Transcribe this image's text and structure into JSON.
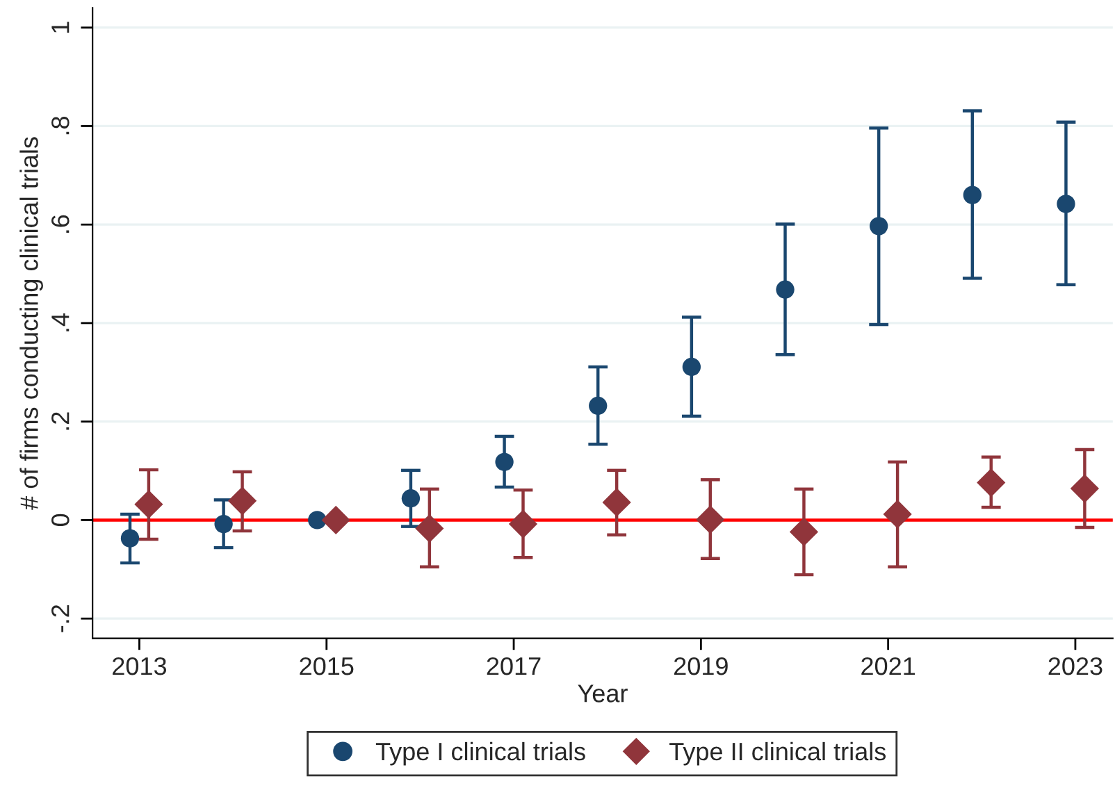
{
  "chart_data": {
    "type": "scatter",
    "xlabel": "Year",
    "ylabel": "# of firms conducting clinical trials",
    "xlim": [
      2012.5,
      2023.4
    ],
    "xticks": [
      2013,
      2015,
      2017,
      2019,
      2021,
      2023
    ],
    "ylim": [
      -0.24,
      1.04
    ],
    "yticks": [
      {
        "value": -0.2,
        "label": "-.2"
      },
      {
        "value": 0,
        "label": "0"
      },
      {
        "value": 0.2,
        "label": ".2"
      },
      {
        "value": 0.4,
        "label": ".4"
      },
      {
        "value": 0.6,
        "label": ".6"
      },
      {
        "value": 0.8,
        "label": ".8"
      },
      {
        "value": 1,
        "label": "1"
      }
    ],
    "grid": "y",
    "legend": "bottom",
    "ref_lines": [
      {
        "axis": "y",
        "value": 0,
        "color": "#ff0000"
      }
    ],
    "series": [
      {
        "name": "Type I clinical trials",
        "color": "#1a476f",
        "marker": "circle",
        "x": [
          2012.9,
          2013.9,
          2014.9,
          2015.9,
          2016.9,
          2017.9,
          2018.9,
          2019.9,
          2020.9,
          2021.9,
          2022.9
        ],
        "values": [
          -0.037,
          -0.008,
          0,
          0.044,
          0.118,
          0.232,
          0.311,
          0.468,
          0.597,
          0.66,
          0.642
        ],
        "errors": [
          [
            -0.087,
            0.012
          ],
          [
            -0.056,
            0.041
          ],
          null,
          [
            -0.013,
            0.101
          ],
          [
            0.067,
            0.17
          ],
          [
            0.154,
            0.311
          ],
          [
            0.211,
            0.412
          ],
          [
            0.336,
            0.601
          ],
          [
            0.397,
            0.796
          ],
          [
            0.491,
            0.831
          ],
          [
            0.478,
            0.808
          ]
        ]
      },
      {
        "name": "Type II clinical trials",
        "color": "#90353b",
        "marker": "diamond",
        "x": [
          2013.1,
          2014.1,
          2015.1,
          2016.1,
          2017.1,
          2018.1,
          2019.1,
          2020.1,
          2021.1,
          2022.1,
          2023.1
        ],
        "values": [
          0.032,
          0.039,
          0,
          -0.017,
          -0.008,
          0.036,
          0.001,
          -0.024,
          0.012,
          0.076,
          0.064
        ],
        "errors": [
          [
            -0.039,
            0.102
          ],
          [
            -0.022,
            0.098
          ],
          null,
          [
            -0.095,
            0.063
          ],
          [
            -0.076,
            0.061
          ],
          [
            -0.03,
            0.101
          ],
          [
            -0.078,
            0.082
          ],
          [
            -0.111,
            0.063
          ],
          [
            -0.095,
            0.118
          ],
          [
            0.026,
            0.128
          ],
          [
            -0.015,
            0.143
          ]
        ]
      }
    ]
  }
}
